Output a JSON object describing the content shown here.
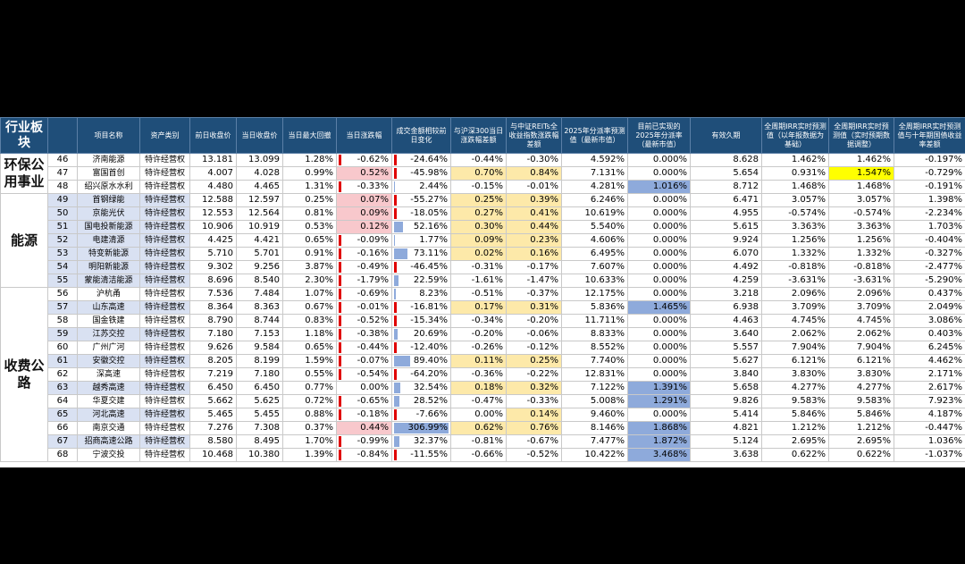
{
  "headers": {
    "sector": "行业板块",
    "index": "",
    "name": "项目名称",
    "type": "资产类别",
    "prev_close": "前日收盘价",
    "close": "当日收盘价",
    "max_drawdown": "当日最大回撤",
    "change": "当日涨跌幅",
    "turnover_change": "成交金额相较前日变化",
    "vs_hs300": "与沪深300当日涨跌幅差额",
    "vs_reits": "与中证REITs全收益指数涨跌幅差额",
    "yield_2025": "2025年分派率预测值（最新市值）",
    "realized_2025": "目前已实现的2025年分派率（最新市值）",
    "duration": "有效久期",
    "irr_base": "全周期IRR实时预测值（以年报数据为基础）",
    "irr_adj": "全周期IRR实时预测值（实时预期数据调整）",
    "irr_spread": "全周期IRR实时预测值与十年期国债收益率差额"
  },
  "sectors": [
    {
      "label": "环保公用事业",
      "rows": 3
    },
    {
      "label": "能源",
      "rows": 7
    },
    {
      "label": "收费公路",
      "rows": 13
    }
  ],
  "rows": [
    {
      "idx": "46",
      "name": "济南能源",
      "type": "特许经营权",
      "prev": "13.181",
      "close": "13.099",
      "mdd": "1.28%",
      "chg": "-0.62%",
      "tov": "-24.64%",
      "hs": "-0.44%",
      "reits": "-0.30%",
      "y25": "4.592%",
      "r25": "0.000%",
      "dur": "8.628",
      "irr1": "1.462%",
      "irr2": "1.462%",
      "sprd": "-0.197%"
    },
    {
      "idx": "47",
      "name": "富国首创",
      "type": "特许经营权",
      "prev": "4.007",
      "close": "4.028",
      "mdd": "0.99%",
      "chg": "0.52%",
      "tov": "-45.98%",
      "hs": "0.70%",
      "reits": "0.84%",
      "y25": "7.131%",
      "r25": "0.000%",
      "dur": "5.654",
      "irr1": "0.931%",
      "irr2": "1.547%",
      "sprd": "-0.729%"
    },
    {
      "idx": "48",
      "name": "绍兴原水水利",
      "type": "特许经营权",
      "prev": "4.480",
      "close": "4.465",
      "mdd": "1.31%",
      "chg": "-0.33%",
      "tov": "2.44%",
      "hs": "-0.15%",
      "reits": "-0.01%",
      "y25": "4.281%",
      "r25": "1.016%",
      "dur": "8.712",
      "irr1": "1.468%",
      "irr2": "1.468%",
      "sprd": "-0.191%"
    },
    {
      "idx": "49",
      "name": "首钢绿能",
      "type": "特许经营权",
      "prev": "12.588",
      "close": "12.597",
      "mdd": "0.25%",
      "chg": "0.07%",
      "tov": "-55.27%",
      "hs": "0.25%",
      "reits": "0.39%",
      "y25": "6.246%",
      "r25": "0.000%",
      "dur": "6.471",
      "irr1": "3.057%",
      "irr2": "3.057%",
      "sprd": "1.398%"
    },
    {
      "idx": "50",
      "name": "京能光伏",
      "type": "特许经营权",
      "prev": "12.553",
      "close": "12.564",
      "mdd": "0.81%",
      "chg": "0.09%",
      "tov": "-18.05%",
      "hs": "0.27%",
      "reits": "0.41%",
      "y25": "10.619%",
      "r25": "0.000%",
      "dur": "4.955",
      "irr1": "-0.574%",
      "irr2": "-0.574%",
      "sprd": "-2.234%"
    },
    {
      "idx": "51",
      "name": "国电投新能源",
      "type": "特许经营权",
      "prev": "10.906",
      "close": "10.919",
      "mdd": "0.53%",
      "chg": "0.12%",
      "tov": "52.16%",
      "hs": "0.30%",
      "reits": "0.44%",
      "y25": "5.540%",
      "r25": "0.000%",
      "dur": "5.615",
      "irr1": "3.363%",
      "irr2": "3.363%",
      "sprd": "1.703%"
    },
    {
      "idx": "52",
      "name": "电建清源",
      "type": "特许经营权",
      "prev": "4.425",
      "close": "4.421",
      "mdd": "0.65%",
      "chg": "-0.09%",
      "tov": "1.77%",
      "hs": "0.09%",
      "reits": "0.23%",
      "y25": "4.606%",
      "r25": "0.000%",
      "dur": "9.924",
      "irr1": "1.256%",
      "irr2": "1.256%",
      "sprd": "-0.404%"
    },
    {
      "idx": "53",
      "name": "特变新能源",
      "type": "特许经营权",
      "prev": "5.710",
      "close": "5.701",
      "mdd": "0.91%",
      "chg": "-0.16%",
      "tov": "73.11%",
      "hs": "0.02%",
      "reits": "0.16%",
      "y25": "6.495%",
      "r25": "0.000%",
      "dur": "6.070",
      "irr1": "1.332%",
      "irr2": "1.332%",
      "sprd": "-0.327%"
    },
    {
      "idx": "54",
      "name": "明阳新能源",
      "type": "特许经营权",
      "prev": "9.302",
      "close": "9.256",
      "mdd": "3.87%",
      "chg": "-0.49%",
      "tov": "-46.45%",
      "hs": "-0.31%",
      "reits": "-0.17%",
      "y25": "7.607%",
      "r25": "0.000%",
      "dur": "4.492",
      "irr1": "-0.818%",
      "irr2": "-0.818%",
      "sprd": "-2.477%"
    },
    {
      "idx": "55",
      "name": "蒙能清洁能源",
      "type": "特许经营权",
      "prev": "8.696",
      "close": "8.540",
      "mdd": "2.30%",
      "chg": "-1.79%",
      "tov": "22.59%",
      "hs": "-1.61%",
      "reits": "-1.47%",
      "y25": "10.633%",
      "r25": "0.000%",
      "dur": "4.259",
      "irr1": "-3.631%",
      "irr2": "-3.631%",
      "sprd": "-5.290%"
    },
    {
      "idx": "56",
      "name": "沪杭甬",
      "type": "特许经营权",
      "prev": "7.536",
      "close": "7.484",
      "mdd": "1.07%",
      "chg": "-0.69%",
      "tov": "8.23%",
      "hs": "-0.51%",
      "reits": "-0.37%",
      "y25": "12.175%",
      "r25": "0.000%",
      "dur": "3.218",
      "irr1": "2.096%",
      "irr2": "2.096%",
      "sprd": "0.437%"
    },
    {
      "idx": "57",
      "name": "山东高速",
      "type": "特许经营权",
      "prev": "8.364",
      "close": "8.363",
      "mdd": "0.67%",
      "chg": "-0.01%",
      "tov": "-16.81%",
      "hs": "0.17%",
      "reits": "0.31%",
      "y25": "5.836%",
      "r25": "1.465%",
      "dur": "6.938",
      "irr1": "3.709%",
      "irr2": "3.709%",
      "sprd": "2.049%"
    },
    {
      "idx": "58",
      "name": "国金铁建",
      "type": "特许经营权",
      "prev": "8.790",
      "close": "8.744",
      "mdd": "0.83%",
      "chg": "-0.52%",
      "tov": "-15.34%",
      "hs": "-0.34%",
      "reits": "-0.20%",
      "y25": "11.711%",
      "r25": "0.000%",
      "dur": "4.463",
      "irr1": "4.745%",
      "irr2": "4.745%",
      "sprd": "3.086%"
    },
    {
      "idx": "59",
      "name": "江苏交控",
      "type": "特许经营权",
      "prev": "7.180",
      "close": "7.153",
      "mdd": "1.18%",
      "chg": "-0.38%",
      "tov": "20.69%",
      "hs": "-0.20%",
      "reits": "-0.06%",
      "y25": "8.833%",
      "r25": "0.000%",
      "dur": "3.640",
      "irr1": "2.062%",
      "irr2": "2.062%",
      "sprd": "0.403%"
    },
    {
      "idx": "60",
      "name": "广州广河",
      "type": "特许经营权",
      "prev": "9.626",
      "close": "9.584",
      "mdd": "0.65%",
      "chg": "-0.44%",
      "tov": "-12.40%",
      "hs": "-0.26%",
      "reits": "-0.12%",
      "y25": "8.552%",
      "r25": "0.000%",
      "dur": "5.557",
      "irr1": "7.904%",
      "irr2": "7.904%",
      "sprd": "6.245%"
    },
    {
      "idx": "61",
      "name": "安徽交控",
      "type": "特许经营权",
      "prev": "8.205",
      "close": "8.199",
      "mdd": "1.59%",
      "chg": "-0.07%",
      "tov": "89.40%",
      "hs": "0.11%",
      "reits": "0.25%",
      "y25": "7.740%",
      "r25": "0.000%",
      "dur": "5.627",
      "irr1": "6.121%",
      "irr2": "6.121%",
      "sprd": "4.462%"
    },
    {
      "idx": "62",
      "name": "深高速",
      "type": "特许经营权",
      "prev": "7.219",
      "close": "7.180",
      "mdd": "0.55%",
      "chg": "-0.54%",
      "tov": "-64.20%",
      "hs": "-0.36%",
      "reits": "-0.22%",
      "y25": "12.831%",
      "r25": "0.000%",
      "dur": "3.840",
      "irr1": "3.830%",
      "irr2": "3.830%",
      "sprd": "2.171%"
    },
    {
      "idx": "63",
      "name": "越秀高速",
      "type": "特许经营权",
      "prev": "6.450",
      "close": "6.450",
      "mdd": "0.77%",
      "chg": "0.00%",
      "tov": "32.54%",
      "hs": "0.18%",
      "reits": "0.32%",
      "y25": "7.122%",
      "r25": "1.391%",
      "dur": "5.658",
      "irr1": "4.277%",
      "irr2": "4.277%",
      "sprd": "2.617%"
    },
    {
      "idx": "64",
      "name": "华夏交建",
      "type": "特许经营权",
      "prev": "5.662",
      "close": "5.625",
      "mdd": "0.72%",
      "chg": "-0.65%",
      "tov": "28.52%",
      "hs": "-0.47%",
      "reits": "-0.33%",
      "y25": "5.008%",
      "r25": "1.291%",
      "dur": "9.826",
      "irr1": "9.583%",
      "irr2": "9.583%",
      "sprd": "7.923%"
    },
    {
      "idx": "65",
      "name": "河北高速",
      "type": "特许经营权",
      "prev": "5.465",
      "close": "5.455",
      "mdd": "0.88%",
      "chg": "-0.18%",
      "tov": "-7.66%",
      "hs": "0.00%",
      "reits": "0.14%",
      "y25": "9.460%",
      "r25": "0.000%",
      "dur": "5.414",
      "irr1": "5.846%",
      "irr2": "5.846%",
      "sprd": "4.187%"
    },
    {
      "idx": "66",
      "name": "南京交通",
      "type": "特许经营权",
      "prev": "7.276",
      "close": "7.308",
      "mdd": "0.37%",
      "chg": "0.44%",
      "tov": "306.99%",
      "hs": "0.62%",
      "reits": "0.76%",
      "y25": "8.146%",
      "r25": "1.868%",
      "dur": "4.821",
      "irr1": "1.212%",
      "irr2": "1.212%",
      "sprd": "-0.447%"
    },
    {
      "idx": "67",
      "name": "招商高速公路",
      "type": "特许经营权",
      "prev": "8.580",
      "close": "8.495",
      "mdd": "1.70%",
      "chg": "-0.99%",
      "tov": "32.37%",
      "hs": "-0.81%",
      "reits": "-0.67%",
      "y25": "7.477%",
      "r25": "1.872%",
      "dur": "5.124",
      "irr1": "2.695%",
      "irr2": "2.695%",
      "sprd": "1.036%"
    },
    {
      "idx": "68",
      "name": "宁波交投",
      "type": "特许经营权",
      "prev": "10.468",
      "close": "10.380",
      "mdd": "1.39%",
      "chg": "-0.84%",
      "tov": "-11.55%",
      "hs": "-0.66%",
      "reits": "-0.52%",
      "y25": "10.422%",
      "r25": "3.468%",
      "dur": "3.638",
      "irr1": "0.622%",
      "irr2": "0.622%",
      "sprd": "-1.037%"
    }
  ],
  "colors": {
    "header_bg": "#1f4e79",
    "pink": "#f8c8cc",
    "orange": "#fde9a9",
    "yellow": "#ffff00",
    "blue": "#8eaadb",
    "red": "#e00000"
  }
}
